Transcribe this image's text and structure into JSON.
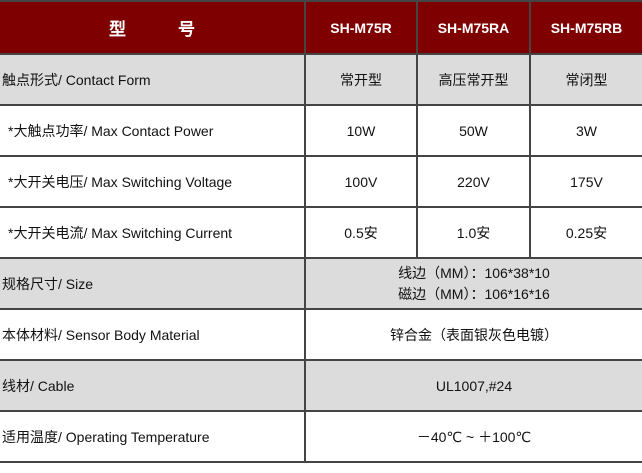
{
  "header": {
    "title_chars": [
      "型",
      "号"
    ],
    "models": [
      "SH-M75R",
      "SH-M75RA",
      "SH-M75RB"
    ]
  },
  "rows": [
    {
      "label": "触点形式/ Contact Form",
      "values": [
        "常开型",
        "高压常开型",
        "常闭型"
      ]
    },
    {
      "label": " *大触点功率/ Max Contact Power",
      "values": [
        "10W",
        "50W",
        "3W"
      ]
    },
    {
      "label": " *大开关电压/ Max Switching Voltage",
      "values": [
        "100V",
        "220V",
        "175V"
      ]
    },
    {
      "label": " *大开关电流/ Max Switching Current",
      "values": [
        "0.5安",
        "1.0安",
        "0.25安"
      ]
    }
  ],
  "size": {
    "label": "规格尺寸/ Size",
    "lines": [
      "线边（MM）：106*38*10",
      "磁边（MM）：106*16*16"
    ]
  },
  "material": {
    "label": "本体材料/ Sensor Body Material",
    "value": "锌合金（表面银灰色电镀）"
  },
  "cable": {
    "label": "线材/ Cable",
    "value": "UL1007,#24"
  },
  "temperature": {
    "label": "适用温度/ Operating Temperature",
    "value": "－40℃ ~ ＋100℃"
  },
  "colors": {
    "header_bg": "#7e0000",
    "gray_row": "#dcdcdc"
  }
}
